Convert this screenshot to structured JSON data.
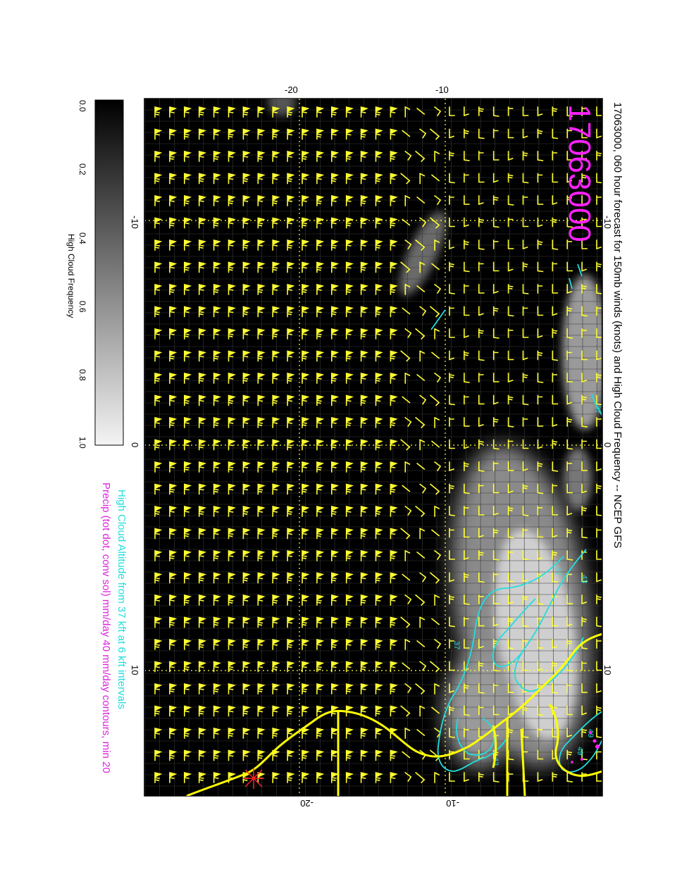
{
  "title": "17063000, 060 hour forecast for 150mb winds (knots) and High Cloud Frequency -- NCEP GFS",
  "stamp": "17063000",
  "legend": {
    "line1": "High Cloud Altitude from 37 kft at 6 kft intervals",
    "line2": "Precip (tot dot, conv sol) mm/day 40 mm/day contours, min 20"
  },
  "colorbar": {
    "label": "High Cloud Frequency",
    "ticks": [
      "0.0",
      "0.2",
      "0.4",
      "0.6",
      "0.8",
      "1.0"
    ]
  },
  "axes": {
    "top_ticks": [
      "-20",
      "-10"
    ],
    "bottom_ticks": [
      "-20",
      "-10"
    ],
    "left_ticks": [
      "-10",
      "0",
      "10"
    ],
    "right_ticks": [
      "-10",
      "0",
      "10"
    ]
  },
  "contour_labels": [
    "43",
    "37",
    "37",
    "49",
    "49",
    "43",
    "37"
  ],
  "colors": {
    "wind": "#ffff33",
    "cloud_contour": "#22dddd",
    "precip": "#ff22ff",
    "coast": "#ffff00",
    "background": "#000000"
  }
}
